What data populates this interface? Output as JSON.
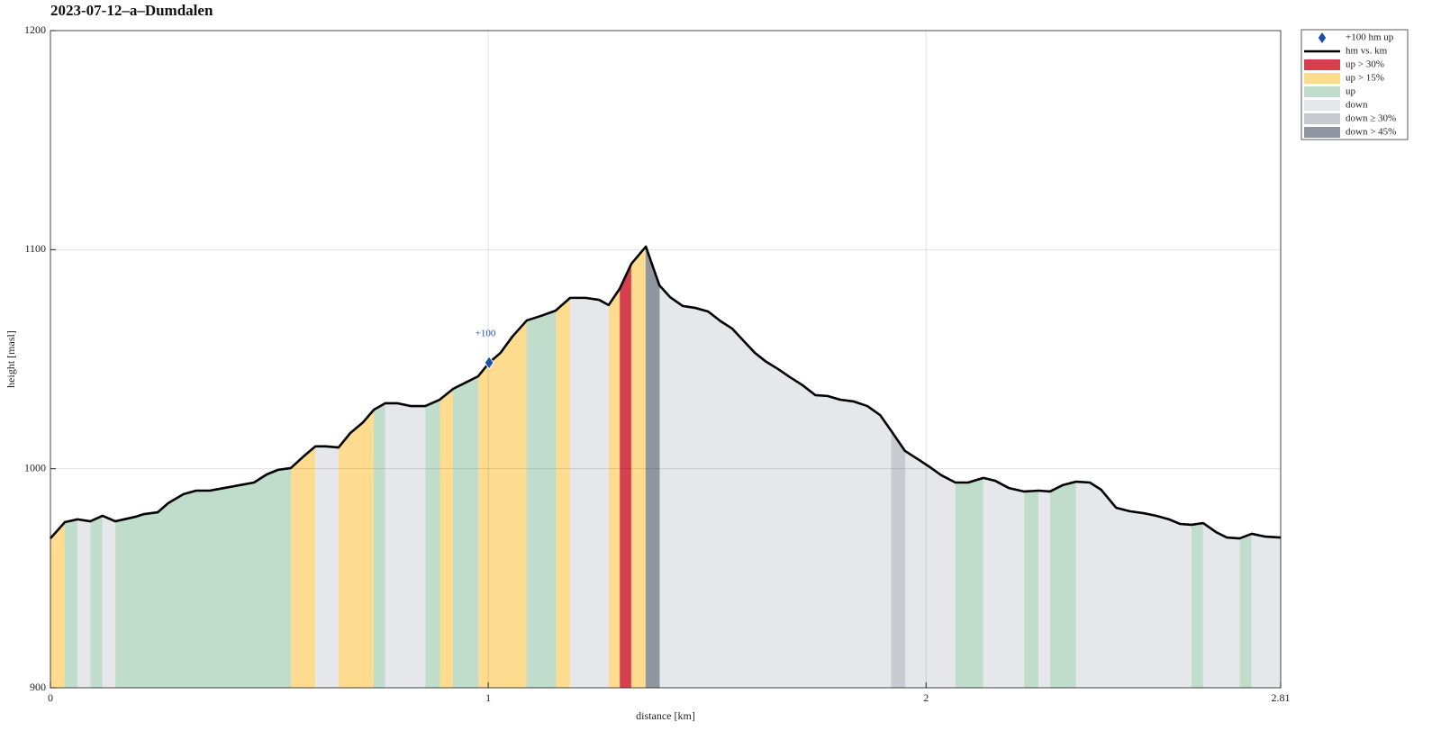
{
  "chart_data": {
    "type": "area",
    "title": "2023-07-12–a–Dumdalen",
    "xlabel": "distance [km]",
    "ylabel": "height [masl]",
    "xlim": [
      0,
      2.81
    ],
    "ylim": [
      900,
      1200
    ],
    "xticks": [
      0,
      1,
      2,
      2.81
    ],
    "yticks": [
      900,
      1000,
      1100,
      1200
    ],
    "grid": true,
    "legend": "outside upper right",
    "marker": {
      "name": "+100 hm up",
      "color": "#1f4ea8",
      "x": [
        1.002
      ],
      "y": [
        1048.4
      ],
      "labels": [
        "+100"
      ]
    },
    "profile": {
      "name": "hm vs. km",
      "color": "#000000",
      "x": [
        0,
        0.033,
        0.062,
        0.091,
        0.119,
        0.148,
        0.193,
        0.214,
        0.245,
        0.269,
        0.304,
        0.333,
        0.364,
        0.397,
        0.432,
        0.465,
        0.494,
        0.52,
        0.549,
        0.578,
        0.605,
        0.629,
        0.658,
        0.685,
        0.714,
        0.739,
        0.765,
        0.792,
        0.823,
        0.856,
        0.889,
        0.92,
        0.948,
        0.977,
        1.002,
        1.028,
        1.055,
        1.088,
        1.121,
        1.154,
        1.187,
        1.222,
        1.253,
        1.275,
        1.3,
        1.327,
        1.36,
        1.391,
        1.415,
        1.444,
        1.473,
        1.502,
        1.531,
        1.557,
        1.584,
        1.609,
        1.635,
        1.662,
        1.689,
        1.718,
        1.747,
        1.775,
        1.804,
        1.835,
        1.866,
        1.895,
        1.921,
        1.952,
        1.981,
        2.006,
        2.035,
        2.067,
        2.096,
        2.131,
        2.158,
        2.189,
        2.224,
        2.257,
        2.283,
        2.312,
        2.343,
        2.374,
        2.4,
        2.434,
        2.465,
        2.497,
        2.526,
        2.555,
        2.58,
        2.606,
        2.633,
        2.662,
        2.687,
        2.716,
        2.744,
        2.775,
        2.81
      ],
      "y": [
        968.2,
        975.6,
        976.9,
        976,
        978.5,
        976,
        978,
        979.3,
        980.1,
        984.3,
        988.4,
        990,
        990,
        991.2,
        992.5,
        993.7,
        997.4,
        999.5,
        1000.3,
        1005.6,
        1010.2,
        1010.2,
        1009.7,
        1016.3,
        1021.2,
        1027,
        1029.9,
        1029.9,
        1028.6,
        1028.6,
        1031.5,
        1036.5,
        1039.3,
        1042.2,
        1048.4,
        1052.9,
        1060.3,
        1067.7,
        1069.8,
        1072.2,
        1078,
        1078,
        1077.1,
        1074.7,
        1082.1,
        1093.6,
        1101.4,
        1083.7,
        1078.4,
        1074.3,
        1073.4,
        1071.8,
        1067.3,
        1064,
        1058.2,
        1052.9,
        1048.8,
        1045.5,
        1041.8,
        1038.1,
        1033.6,
        1033.2,
        1031.5,
        1030.7,
        1028.6,
        1024.5,
        1017.1,
        1008.1,
        1004.4,
        1001.1,
        997,
        993.7,
        993.7,
        995.8,
        994.5,
        991.2,
        989.6,
        990,
        989.6,
        992.5,
        994.1,
        993.7,
        990.4,
        982.2,
        980.6,
        979.7,
        978.5,
        976.9,
        974.8,
        974.4,
        975.2,
        971.1,
        968.6,
        968.2,
        970.3,
        969,
        968.6
      ]
    },
    "bands": [
      {
        "name": "up > 30%",
        "color": "#d6404e",
        "ranges": [
          [
            1.3,
            1.327
          ]
        ]
      },
      {
        "name": "up > 15%",
        "color": "#fddb8f",
        "ranges": [
          [
            0,
            0.033
          ],
          [
            0.549,
            0.605
          ],
          [
            0.658,
            0.739
          ],
          [
            0.889,
            0.92
          ],
          [
            0.977,
            1.088
          ],
          [
            1.154,
            1.187
          ],
          [
            1.275,
            1.3
          ],
          [
            1.327,
            1.36
          ]
        ]
      },
      {
        "name": "up",
        "color": "#c0dccb",
        "ranges": [
          [
            0.033,
            0.062
          ],
          [
            0.091,
            0.119
          ],
          [
            0.148,
            0.549
          ],
          [
            0.739,
            0.765
          ],
          [
            0.856,
            0.889
          ],
          [
            0.92,
            0.977
          ],
          [
            1.088,
            1.154
          ],
          [
            2.067,
            2.131
          ],
          [
            2.224,
            2.257
          ],
          [
            2.283,
            2.343
          ],
          [
            2.606,
            2.633
          ],
          [
            2.716,
            2.744
          ]
        ]
      },
      {
        "name": "down",
        "color": "#e6e7eb",
        "ranges": [
          [
            0.062,
            0.091
          ],
          [
            0.119,
            0.148
          ],
          [
            0.605,
            0.658
          ],
          [
            0.765,
            0.856
          ],
          [
            1.187,
            1.275
          ],
          [
            1.391,
            1.921
          ],
          [
            1.952,
            2.067
          ],
          [
            2.131,
            2.224
          ],
          [
            2.257,
            2.283
          ],
          [
            2.343,
            2.606
          ],
          [
            2.633,
            2.716
          ],
          [
            2.744,
            2.81
          ]
        ]
      },
      {
        "name": "down ≥ 30%",
        "color": "#c8cad0",
        "ranges": [
          [
            1.921,
            1.952
          ]
        ]
      },
      {
        "name": "down > 45%",
        "color": "#8f96a1",
        "ranges": [
          [
            1.36,
            1.391
          ]
        ]
      }
    ]
  }
}
